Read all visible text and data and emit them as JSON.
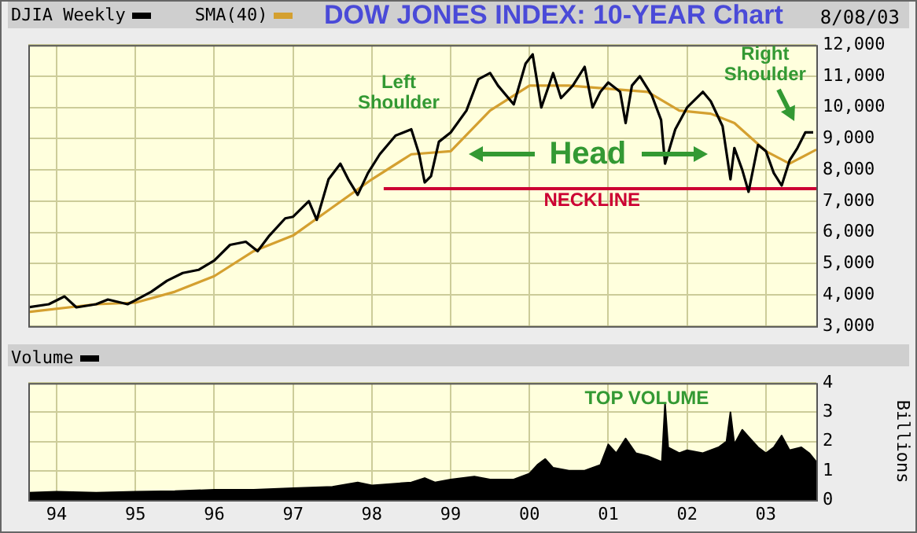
{
  "chart_data": [
    {
      "type": "line",
      "title": "DOW JONES INDEX: 10-YEAR Chart",
      "xlim": [
        1993.64,
        2003.64
      ],
      "ylim": [
        3000,
        12000
      ],
      "xticks": [
        {
          "value": 1994,
          "label": null
        },
        {
          "value": 1995,
          "label": null
        },
        {
          "value": 1996,
          "label": null
        },
        {
          "value": 1997,
          "label": null
        },
        {
          "value": 1998,
          "label": null
        },
        {
          "value": 1999,
          "label": null
        },
        {
          "value": 2000,
          "label": null
        },
        {
          "value": 2001,
          "label": null
        },
        {
          "value": 2002,
          "label": null
        },
        {
          "value": 2003,
          "label": null
        }
      ],
      "yticks": [
        {
          "value": 3000,
          "label": "3,000"
        },
        {
          "value": 4000,
          "label": "4,000"
        },
        {
          "value": 5000,
          "label": "5,000"
        },
        {
          "value": 6000,
          "label": "6,000"
        },
        {
          "value": 7000,
          "label": "7,000"
        },
        {
          "value": 8000,
          "label": "8,000"
        },
        {
          "value": 9000,
          "label": "9,000"
        },
        {
          "value": 10000,
          "label": "10,000"
        },
        {
          "value": 11000,
          "label": "11,000"
        },
        {
          "value": 12000,
          "label": "12,000"
        }
      ],
      "tick_labels": "y",
      "grid": true,
      "legend": "top left",
      "marker": "none",
      "series": [
        {
          "name": "DJIA Weekly",
          "color": "#000000",
          "x": [
            1993.64,
            1993.9,
            1994.1,
            1994.25,
            1994.5,
            1994.65,
            1994.9,
            1995.0,
            1995.2,
            1995.4,
            1995.6,
            1995.8,
            1996.0,
            1996.2,
            1996.4,
            1996.55,
            1996.7,
            1996.9,
            1997.0,
            1997.2,
            1997.3,
            1997.45,
            1997.6,
            1997.7,
            1997.82,
            1997.95,
            1998.1,
            1998.3,
            1998.5,
            1998.6,
            1998.67,
            1998.75,
            1998.85,
            1999.0,
            1999.2,
            1999.35,
            1999.5,
            1999.6,
            1999.8,
            1999.95,
            2000.04,
            2000.15,
            2000.3,
            2000.4,
            2000.55,
            2000.7,
            2000.8,
            2000.9,
            2001.0,
            2001.15,
            2001.22,
            2001.3,
            2001.4,
            2001.55,
            2001.67,
            2001.72,
            2001.85,
            2002.0,
            2002.2,
            2002.3,
            2002.45,
            2002.55,
            2002.6,
            2002.7,
            2002.78,
            2002.9,
            2003.0,
            2003.1,
            2003.2,
            2003.3,
            2003.4,
            2003.5,
            2003.6
          ],
          "values": [
            3600,
            3700,
            3950,
            3600,
            3700,
            3850,
            3700,
            3830,
            4100,
            4450,
            4700,
            4800,
            5100,
            5600,
            5700,
            5400,
            5900,
            6450,
            6500,
            7000,
            6400,
            7700,
            8200,
            7700,
            7200,
            7900,
            8500,
            9100,
            9300,
            8500,
            7600,
            7800,
            8900,
            9200,
            9900,
            10900,
            11100,
            10700,
            10100,
            11400,
            11700,
            10000,
            11100,
            10300,
            10700,
            11300,
            10000,
            10500,
            10800,
            10500,
            9500,
            10700,
            11000,
            10400,
            9600,
            8200,
            9300,
            10000,
            10500,
            10200,
            9400,
            7700,
            8700,
            8000,
            7300,
            8800,
            8600,
            7900,
            7500,
            8300,
            8700,
            9200,
            9200
          ]
        },
        {
          "name": "SMA(40)",
          "color": "#d4a030",
          "x": [
            1993.64,
            1994.5,
            1995.0,
            1995.5,
            1996.0,
            1996.5,
            1997.0,
            1997.5,
            1998.0,
            1998.5,
            1999.0,
            1999.5,
            2000.0,
            2000.5,
            2001.0,
            2001.5,
            2001.9,
            2002.3,
            2002.6,
            2003.0,
            2003.3,
            2003.64
          ],
          "values": [
            3450,
            3700,
            3750,
            4100,
            4600,
            5400,
            5900,
            6800,
            7700,
            8500,
            8600,
            9900,
            10700,
            10700,
            10600,
            10500,
            9900,
            9800,
            9500,
            8600,
            8200,
            8650
          ]
        },
        {
          "color": "#cc0033",
          "x": [
            1998.15,
            2003.64
          ],
          "values": [
            7400,
            7400
          ]
        }
      ],
      "annotations": [
        "Left Shoulder",
        "NECKLINE",
        "Head",
        "Right Shoulder",
        "8/08/03"
      ]
    },
    {
      "type": "area",
      "xlim": [
        1993.64,
        2003.64
      ],
      "ylim": [
        0,
        4
      ],
      "yticks": [
        0,
        1,
        2,
        3,
        4
      ],
      "ylabel": "Billions",
      "xticks": [
        {
          "value": 1994,
          "label": "94"
        },
        {
          "value": 1995,
          "label": "95"
        },
        {
          "value": 1996,
          "label": "96"
        },
        {
          "value": 1997,
          "label": "97"
        },
        {
          "value": 1998,
          "label": "98"
        },
        {
          "value": 1999,
          "label": "99"
        },
        {
          "value": 2000,
          "label": "00"
        },
        {
          "value": 2001,
          "label": "01"
        },
        {
          "value": 2002,
          "label": "02"
        },
        {
          "value": 2003,
          "label": "03"
        }
      ],
      "grid": true,
      "legend": "top left",
      "marker": "none",
      "series": [
        {
          "name": "Volume",
          "color": "#000000",
          "x": [
            1993.64,
            1994.0,
            1994.5,
            1995.0,
            1995.5,
            1996.0,
            1996.5,
            1997.0,
            1997.5,
            1997.82,
            1998.0,
            1998.5,
            1998.67,
            1998.8,
            1999.0,
            1999.3,
            1999.5,
            1999.8,
            2000.0,
            2000.1,
            2000.2,
            2000.3,
            2000.5,
            2000.7,
            2000.9,
            2001.0,
            2001.1,
            2001.22,
            2001.35,
            2001.5,
            2001.68,
            2001.72,
            2001.76,
            2001.9,
            2002.0,
            2002.2,
            2002.4,
            2002.5,
            2002.55,
            2002.6,
            2002.7,
            2002.8,
            2002.9,
            2003.0,
            2003.1,
            2003.2,
            2003.3,
            2003.45,
            2003.55,
            2003.64
          ],
          "values": [
            0.25,
            0.28,
            0.25,
            0.28,
            0.3,
            0.35,
            0.35,
            0.4,
            0.45,
            0.6,
            0.5,
            0.6,
            0.75,
            0.6,
            0.7,
            0.8,
            0.7,
            0.7,
            0.9,
            1.2,
            1.4,
            1.1,
            1.0,
            1.0,
            1.2,
            1.9,
            1.6,
            2.1,
            1.6,
            1.5,
            1.3,
            3.3,
            1.8,
            1.6,
            1.7,
            1.6,
            1.8,
            2.0,
            3.0,
            1.9,
            2.4,
            2.1,
            1.8,
            1.6,
            1.8,
            2.2,
            1.7,
            1.8,
            1.6,
            1.3
          ]
        }
      ],
      "annotations": [
        "TOP VOLUME"
      ]
    }
  ]
}
